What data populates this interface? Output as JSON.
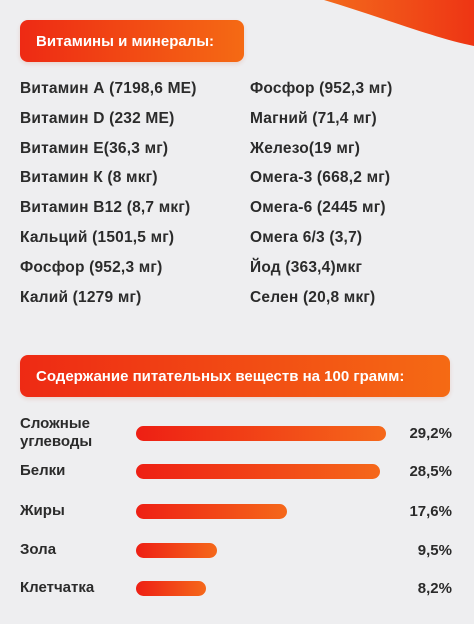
{
  "colors": {
    "accent_start": "#ee2a14",
    "accent_end": "#f56a14",
    "background": "#eeeef0",
    "text": "#2b2b2b"
  },
  "vitamins_header": "Витамины и минералы:",
  "vitamins_left": [
    "Витамин А (7198,6 МЕ)",
    "Витамин D (232 МЕ)",
    "Витамин E(36,3 мг)",
    "Витамин К (8 мкг)",
    "Витамин В12 (8,7 мкг)",
    "Кальций (1501,5 мг)",
    "Фосфор (952,3 мг)",
    "Калий (1279 мг)"
  ],
  "vitamins_right": [
    "Фосфор (952,3 мг)",
    "Магний (71,4 мг)",
    "Железо(19 мг)",
    "Омега-3 (668,2 мг)",
    "Омега-6 (2445 мг)",
    "Омега 6/3 (3,7)",
    "Йод (363,4)мкг",
    "Селен (20,8 мкг)"
  ],
  "nutrients_header": "Содержание питательных веществ на 100 грамм:",
  "nutrients": [
    {
      "name": "Сложные углеводы",
      "value": 29.2,
      "value_label": "29,2%"
    },
    {
      "name": "Белки",
      "value": 28.5,
      "value_label": "28,5%"
    },
    {
      "name": "Жиры",
      "value": 17.6,
      "value_label": "17,6%"
    },
    {
      "name": "Зола",
      "value": 9.5,
      "value_label": "9,5%"
    },
    {
      "name": "Клетчатка",
      "value": 8.2,
      "value_label": "8,2%"
    }
  ]
}
